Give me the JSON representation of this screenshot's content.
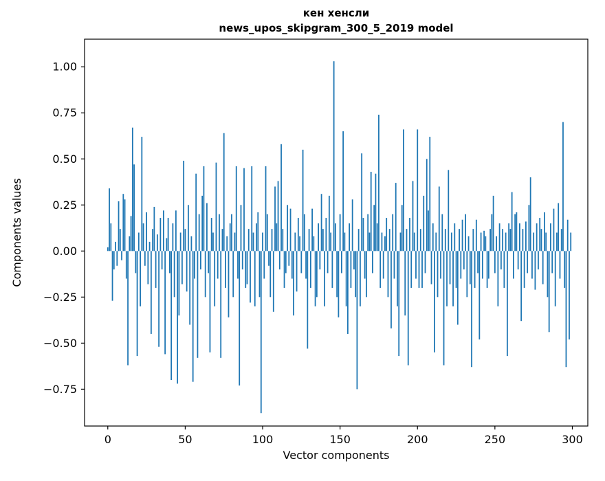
{
  "chart_data": {
    "type": "bar",
    "title_line1": "кен хенсли",
    "title_line2": "news_upos_skipgram_300_5_2019 model",
    "xlabel": "Vector components",
    "ylabel": "Components values",
    "xlim": [
      -15,
      310
    ],
    "ylim": [
      -0.95,
      1.15
    ],
    "x_ticks": [
      0,
      50,
      100,
      150,
      200,
      250,
      300
    ],
    "y_ticks": [
      1.0,
      0.75,
      0.5,
      0.25,
      0.0,
      -0.25,
      -0.5,
      -0.75
    ],
    "grid": false,
    "legend": "none",
    "bar_color": "#1f77b4",
    "values": [
      0.02,
      0.34,
      0.15,
      -0.27,
      -0.1,
      0.05,
      -0.08,
      0.27,
      0.12,
      -0.05,
      0.31,
      0.28,
      -0.15,
      -0.62,
      0.08,
      0.19,
      0.67,
      0.47,
      -0.12,
      -0.57,
      0.1,
      -0.3,
      0.62,
      0.15,
      -0.08,
      0.21,
      -0.18,
      0.05,
      -0.45,
      0.12,
      0.24,
      -0.2,
      0.09,
      -0.52,
      0.18,
      -0.1,
      0.22,
      -0.56,
      0.07,
      0.18,
      -0.12,
      -0.7,
      0.15,
      -0.25,
      0.22,
      -0.72,
      -0.35,
      0.1,
      -0.18,
      0.49,
      0.12,
      -0.22,
      0.25,
      -0.4,
      0.08,
      -0.71,
      -0.15,
      0.42,
      -0.58,
      0.2,
      -0.1,
      0.3,
      0.46,
      -0.25,
      0.26,
      -0.12,
      -0.55,
      0.18,
      0.1,
      -0.3,
      0.48,
      -0.15,
      0.2,
      -0.58,
      0.12,
      0.64,
      -0.2,
      0.08,
      -0.36,
      0.15,
      0.2,
      -0.25,
      0.1,
      0.46,
      -0.15,
      -0.73,
      0.25,
      -0.1,
      0.45,
      -0.2,
      -0.18,
      0.12,
      -0.28,
      0.46,
      0.1,
      -0.3,
      0.15,
      0.21,
      -0.25,
      -0.88,
      0.1,
      -0.15,
      0.46,
      0.2,
      -0.08,
      -0.25,
      0.12,
      -0.33,
      0.35,
      0.15,
      0.38,
      -0.1,
      0.58,
      0.12,
      -0.2,
      -0.12,
      0.25,
      -0.08,
      0.23,
      -0.15,
      -0.35,
      0.1,
      -0.22,
      0.18,
      0.08,
      -0.12,
      0.55,
      0.2,
      -0.15,
      -0.53,
      0.12,
      -0.2,
      0.23,
      0.08,
      -0.3,
      -0.25,
      0.15,
      -0.1,
      0.31,
      0.12,
      -0.3,
      0.18,
      -0.12,
      0.3,
      0.1,
      -0.2,
      1.03,
      0.15,
      -0.25,
      -0.36,
      0.2,
      -0.12,
      0.65,
      0.1,
      -0.3,
      -0.45,
      0.15,
      -0.2,
      0.28,
      -0.1,
      -0.25,
      -0.75,
      0.12,
      -0.3,
      0.53,
      0.18,
      -0.15,
      -0.25,
      0.2,
      0.1,
      0.43,
      -0.12,
      0.25,
      0.42,
      0.15,
      0.74,
      -0.2,
      0.1,
      -0.15,
      0.08,
      0.18,
      -0.25,
      0.12,
      -0.42,
      0.2,
      -0.15,
      0.37,
      -0.3,
      -0.57,
      0.1,
      0.25,
      0.66,
      -0.35,
      0.12,
      -0.62,
      0.18,
      -0.2,
      0.38,
      0.1,
      -0.15,
      0.66,
      -0.2,
      0.12,
      -0.2,
      0.3,
      -0.12,
      0.5,
      0.22,
      0.62,
      -0.18,
      0.15,
      -0.55,
      0.1,
      -0.25,
      0.35,
      -0.15,
      0.2,
      -0.62,
      0.12,
      -0.3,
      0.44,
      -0.18,
      0.1,
      -0.3,
      0.15,
      -0.2,
      -0.4,
      0.12,
      -0.15,
      0.17,
      -0.1,
      0.2,
      -0.25,
      0.08,
      -0.18,
      -0.63,
      0.12,
      -0.2,
      0.17,
      -0.12,
      -0.48,
      0.1,
      -0.15,
      0.11,
      0.08,
      -0.2,
      -0.15,
      0.12,
      0.2,
      0.3,
      -0.12,
      0.08,
      -0.3,
      0.15,
      -0.1,
      0.12,
      -0.2,
      0.1,
      -0.57,
      0.15,
      0.12,
      0.32,
      -0.15,
      0.2,
      0.21,
      -0.1,
      0.15,
      -0.38,
      0.12,
      -0.2,
      0.16,
      -0.12,
      0.25,
      0.4,
      -0.15,
      0.1,
      -0.21,
      0.15,
      -0.1,
      0.18,
      0.12,
      -0.18,
      0.21,
      0.1,
      -0.25,
      -0.44,
      0.15,
      -0.12,
      0.23,
      -0.3,
      0.1,
      0.26,
      -0.15,
      0.12,
      0.7,
      -0.2,
      -0.63,
      0.17,
      -0.48,
      0.1
    ]
  }
}
